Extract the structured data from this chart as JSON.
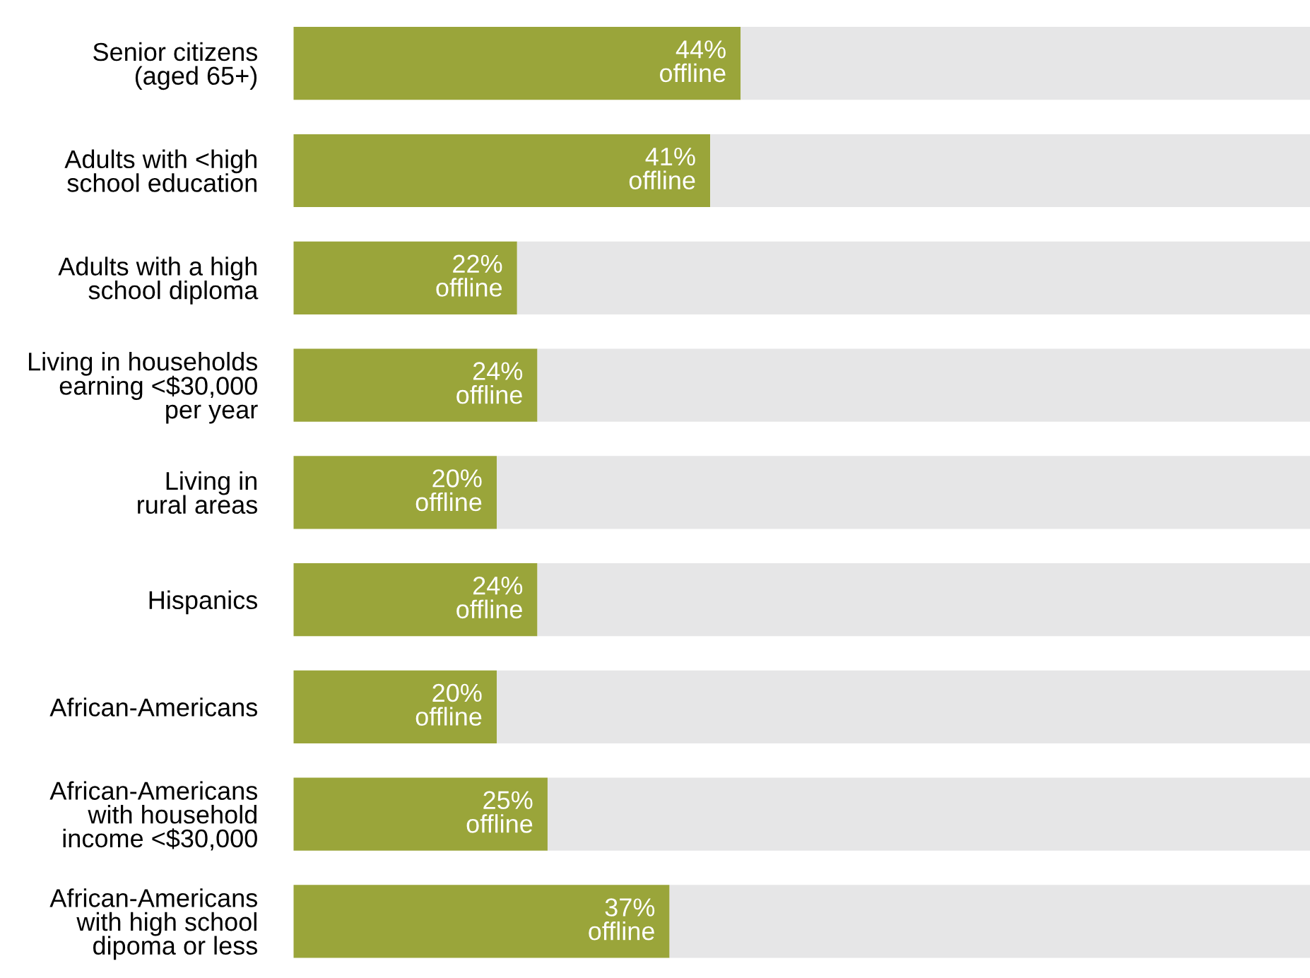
{
  "chart_data": {
    "type": "bar",
    "orientation": "horizontal",
    "stacked": true,
    "categories": [
      "Senior citizens\n(aged 65+)",
      "Adults with <high\nschool education",
      "Adults with a high\nschool diploma",
      "Living in households\nearning <$30,000\nper year",
      "Living in\nrural areas",
      "Hispanics",
      "African-Americans",
      "African-Americans\nwith household\nincome <$30,000",
      "African-Americans\nwith high school\ndipoma or less"
    ],
    "series": [
      {
        "color": "#9aa53a",
        "values": [
          44,
          41,
          22,
          24,
          20,
          24,
          20,
          25,
          37
        ],
        "value_labels": [
          "44%\noffline",
          "41%\noffline",
          "22%\noffline",
          "24%\noffline",
          "20%\noffline",
          "24%\noffline",
          "20%\noffline",
          "25%\noffline",
          "37%\noffline"
        ]
      },
      {
        "color": "#e6e6e7",
        "values": [
          56,
          59,
          78,
          76,
          80,
          76,
          80,
          75,
          63
        ]
      }
    ],
    "xlim": [
      0,
      100
    ],
    "tick_labels": "y",
    "grid": false,
    "legend": false
  }
}
